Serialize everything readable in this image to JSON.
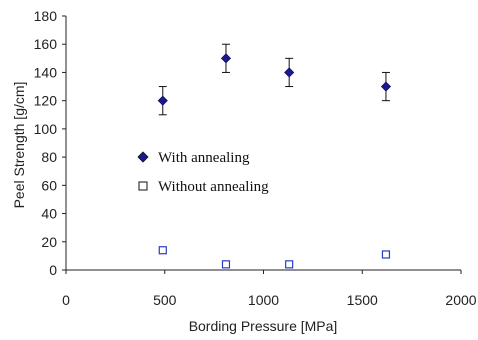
{
  "chart_data": {
    "type": "scatter",
    "xlabel": "Bording Pressure [MPa]",
    "ylabel": "Peel Strength [g/cm]",
    "xlim": [
      0,
      2000
    ],
    "ylim": [
      0,
      180
    ],
    "xticks": [
      0,
      500,
      1000,
      1500,
      2000
    ],
    "yticks": [
      0,
      20,
      40,
      60,
      80,
      100,
      120,
      140,
      160,
      180
    ],
    "grid": false,
    "legend_placement": "center-left",
    "series": [
      {
        "name": "With annealing",
        "marker": "filled-diamond",
        "color": "#1a1a8c",
        "x": [
          490,
          810,
          1130,
          1620
        ],
        "y": [
          120,
          150,
          140,
          130
        ],
        "error": [
          10,
          10,
          10,
          10
        ]
      },
      {
        "name": "Without annealing",
        "marker": "open-square",
        "color": "#2a3cc0",
        "x": [
          490,
          810,
          1130,
          1620
        ],
        "y": [
          14,
          4,
          4,
          11
        ]
      }
    ]
  }
}
